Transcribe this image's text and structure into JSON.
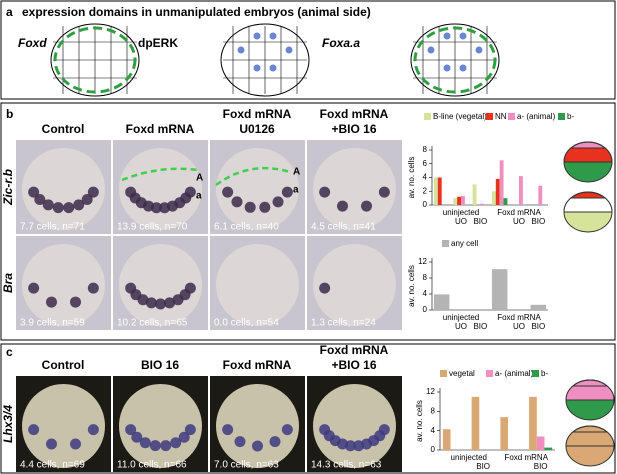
{
  "panel_a": {
    "letter": "a",
    "title": "expression domains in unmanipulated embryos (animal side)",
    "labels": [
      "Foxd",
      "dpERK",
      "Foxa.a"
    ]
  },
  "panel_b": {
    "letter": "b",
    "columns": [
      [
        "Control"
      ],
      [
        "Foxd mRNA"
      ],
      [
        "Foxd mRNA",
        "U0126"
      ],
      [
        "Foxd mRNA",
        "+BIO 16"
      ]
    ],
    "rows": [
      {
        "label": "Zic-r.b",
        "captions": [
          "7.7 cells, n=71",
          "13.9 cells, n=70",
          "6.1 cells, n=40",
          "4.5 cells, n=41"
        ]
      },
      {
        "label": "Bra",
        "captions": [
          "3.9 cells, n=59",
          "10.2 cells, n=65",
          "0.0 cells, n=54",
          "1.3 cells, n=24"
        ]
      }
    ],
    "annotations": [
      [
        "A",
        "a"
      ],
      [
        "A",
        "a"
      ]
    ]
  },
  "panel_c": {
    "letter": "c",
    "columns": [
      [
        "Control"
      ],
      [
        "BIO 16"
      ],
      [
        "Foxd mRNA"
      ],
      [
        "Foxd mRNA",
        "+BIO 16"
      ]
    ],
    "rows": [
      {
        "label": "Lhx3/4",
        "captions": [
          "4.4 cells, n=69",
          "11.0 cells, n=66",
          "7.0 cells, n=63",
          "14.3 cells, n=63"
        ]
      }
    ]
  },
  "chart_data": [
    {
      "type": "bar",
      "y_label": "av. no. cells",
      "ylim": [
        0,
        8
      ],
      "yticks": [
        0,
        2,
        4,
        6,
        8
      ],
      "categories": [
        null,
        "UO",
        "BIO",
        null,
        "UO",
        "BIO"
      ],
      "groups": [
        "uninjected",
        "Foxd mRNA"
      ],
      "series": [
        {
          "name": "B-line (vegetal)",
          "color": "#d6e39a",
          "values": [
            4,
            1,
            3,
            2,
            0,
            0
          ]
        },
        {
          "name": "NN",
          "color": "#e8321e",
          "values": [
            4,
            1.2,
            0,
            3.8,
            0,
            0
          ]
        },
        {
          "name": "a- (animal)",
          "color": "#ee8fc0",
          "values": [
            0,
            1.3,
            0.2,
            6.5,
            4.2,
            2.8
          ]
        },
        {
          "name": "b-",
          "color": "#2f9a4a",
          "values": [
            0,
            0,
            0,
            1,
            0,
            0
          ]
        }
      ]
    },
    {
      "type": "bar",
      "y_label": "av. no. cells",
      "ylim": [
        0,
        12
      ],
      "yticks": [
        0,
        4,
        8,
        12
      ],
      "categories": [
        null,
        "UO",
        "BIO",
        null,
        "UO",
        "BIO"
      ],
      "groups": [
        "uninjected",
        "Foxd mRNA"
      ],
      "series": [
        {
          "name": "any cell",
          "color": "#b4b4b4",
          "values": [
            3.9,
            0,
            0,
            10.2,
            0,
            1.3
          ]
        }
      ]
    },
    {
      "type": "bar",
      "y_label": "av. no. cells",
      "ylim": [
        0,
        12
      ],
      "yticks": [
        0,
        4,
        8,
        12
      ],
      "categories": [
        null,
        "BIO",
        null,
        "BIO"
      ],
      "groups": [
        "uninjected",
        "Foxd mRNA"
      ],
      "series": [
        {
          "name": "vegetal",
          "color": "#d9a874",
          "values": [
            4.3,
            11,
            6.8,
            11
          ]
        },
        {
          "name": "a- (animal)",
          "color": "#ee8fc0",
          "values": [
            0,
            0,
            0,
            2.8
          ]
        },
        {
          "name": "b-",
          "color": "#2f9a4a",
          "values": [
            0,
            0,
            0,
            0.5
          ]
        }
      ]
    }
  ]
}
